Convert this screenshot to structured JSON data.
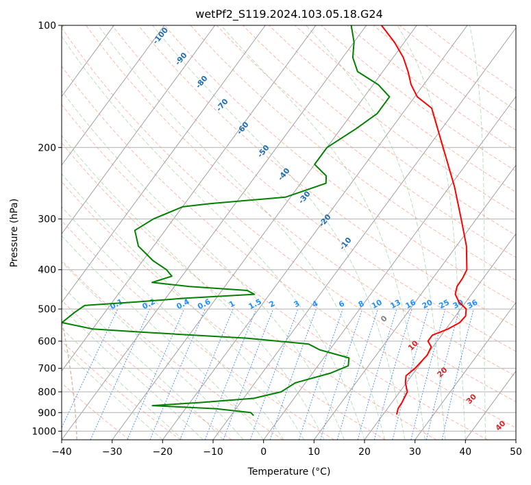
{
  "chart_data": {
    "type": "line",
    "subtype": "skew-t log-p diagram",
    "title": "wetPf2_S119.2024.103.05.18.G24",
    "xlabel": "Temperature (°C)",
    "ylabel": "Pressure (hPa)",
    "xlim": [
      -40,
      50
    ],
    "ylim": [
      1050,
      100
    ],
    "y_scale": "log",
    "grid": true,
    "x_ticks": [
      "−40",
      "−30",
      "−20",
      "−10",
      "0",
      "10",
      "20",
      "30",
      "40",
      "50"
    ],
    "y_ticks": [
      "100",
      "200",
      "300",
      "400",
      "500",
      "600",
      "700",
      "800",
      "900",
      "1000"
    ],
    "series": [
      {
        "color": "#ff0000",
        "points": [
          {
            "p": 910,
            "t": 22.7
          },
          {
            "p": 880,
            "t": 22.1
          },
          {
            "p": 850,
            "t": 22.0
          },
          {
            "p": 800,
            "t": 21.5
          },
          {
            "p": 760,
            "t": 19.8
          },
          {
            "p": 730,
            "t": 18.9
          },
          {
            "p": 700,
            "t": 19.6
          },
          {
            "p": 650,
            "t": 20.1
          },
          {
            "p": 620,
            "t": 19.7
          },
          {
            "p": 600,
            "t": 18.2
          },
          {
            "p": 580,
            "t": 18.2
          },
          {
            "p": 560,
            "t": 20.4
          },
          {
            "p": 540,
            "t": 21.8
          },
          {
            "p": 520,
            "t": 22.0
          },
          {
            "p": 500,
            "t": 21.1
          },
          {
            "p": 480,
            "t": 18.6
          },
          {
            "p": 460,
            "t": 16.8
          },
          {
            "p": 440,
            "t": 16.0
          },
          {
            "p": 420,
            "t": 15.9
          },
          {
            "p": 400,
            "t": 15.5
          },
          {
            "p": 350,
            "t": 12.0
          },
          {
            "p": 300,
            "t": 7.0
          },
          {
            "p": 250,
            "t": 1.0
          },
          {
            "p": 200,
            "t": -7.0
          },
          {
            "p": 160,
            "t": -15.0
          },
          {
            "p": 150,
            "t": -19.5
          },
          {
            "p": 140,
            "t": -22.5
          },
          {
            "p": 130,
            "t": -25.0
          },
          {
            "p": 120,
            "t": -28.0
          },
          {
            "p": 110,
            "t": -32.0
          },
          {
            "p": 100,
            "t": -37.0
          }
        ]
      },
      {
        "color": "#008000",
        "points": [
          {
            "p": 915,
            "t": -5.5
          },
          {
            "p": 900,
            "t": -6.5
          },
          {
            "p": 880,
            "t": -14.0
          },
          {
            "p": 865,
            "t": -27.0
          },
          {
            "p": 850,
            "t": -18.0
          },
          {
            "p": 830,
            "t": -8.0
          },
          {
            "p": 800,
            "t": -3.5
          },
          {
            "p": 760,
            "t": -2.0
          },
          {
            "p": 720,
            "t": 3.5
          },
          {
            "p": 690,
            "t": 6.0
          },
          {
            "p": 660,
            "t": 5.0
          },
          {
            "p": 630,
            "t": -2.0
          },
          {
            "p": 610,
            "t": -5.0
          },
          {
            "p": 590,
            "t": -18.0
          },
          {
            "p": 570,
            "t": -40.0
          },
          {
            "p": 560,
            "t": -50.0
          },
          {
            "p": 540,
            "t": -57.0
          },
          {
            "p": 510,
            "t": -56.0
          },
          {
            "p": 490,
            "t": -55.0
          },
          {
            "p": 480,
            "t": -45.0
          },
          {
            "p": 470,
            "t": -36.0
          },
          {
            "p": 460,
            "t": -23.0
          },
          {
            "p": 450,
            "t": -25.0
          },
          {
            "p": 440,
            "t": -37.0
          },
          {
            "p": 430,
            "t": -45.0
          },
          {
            "p": 415,
            "t": -42.0
          },
          {
            "p": 400,
            "t": -44.0
          },
          {
            "p": 380,
            "t": -48.0
          },
          {
            "p": 350,
            "t": -53.0
          },
          {
            "p": 320,
            "t": -56.0
          },
          {
            "p": 300,
            "t": -54.0
          },
          {
            "p": 280,
            "t": -50.0
          },
          {
            "p": 275,
            "t": -45.0
          },
          {
            "p": 265,
            "t": -31.0
          },
          {
            "p": 245,
            "t": -25.0
          },
          {
            "p": 235,
            "t": -26.0
          },
          {
            "p": 220,
            "t": -30.0
          },
          {
            "p": 200,
            "t": -30.0
          },
          {
            "p": 180,
            "t": -27.0
          },
          {
            "p": 165,
            "t": -25.0
          },
          {
            "p": 150,
            "t": -25.0
          },
          {
            "p": 140,
            "t": -29.0
          },
          {
            "p": 130,
            "t": -35.0
          },
          {
            "p": 120,
            "t": -38.0
          },
          {
            "p": 110,
            "t": -40.0
          },
          {
            "p": 100,
            "t": -43.0
          }
        ]
      }
    ],
    "dry_adiabat_labels": [
      {
        "text": "-100",
        "t": -100
      },
      {
        "text": "-90",
        "t": -90
      },
      {
        "text": "-80",
        "t": -80
      },
      {
        "text": "-70",
        "t": -70
      },
      {
        "text": "-60",
        "t": -60
      },
      {
        "text": "-50",
        "t": -50
      },
      {
        "text": "-40",
        "t": -40
      },
      {
        "text": "-30",
        "t": -30
      },
      {
        "text": "-20",
        "t": -20
      },
      {
        "text": "-10",
        "t": -10
      }
    ],
    "mixing_ratio_labels": [
      "0.1",
      "0.2",
      "0.4",
      "0.6",
      "1",
      "1.5",
      "2",
      "3",
      "4",
      "6",
      "8",
      "10",
      "13",
      "16",
      "20",
      "25",
      "30",
      "36"
    ],
    "moist_adiabat_labels": [
      {
        "text": "0",
        "color": "#808080"
      },
      {
        "text": "10",
        "color": "#d62728"
      },
      {
        "text": "20",
        "color": "#d62728"
      },
      {
        "text": "30",
        "color": "#d62728"
      },
      {
        "text": "40",
        "color": "#d62728"
      }
    ],
    "colors": {
      "isotherm": "#a0a0a0",
      "dry_adiabat": "#ff6040",
      "moist_adiabat": "#40a040",
      "mixing_ratio": "#1f77ff",
      "dry_adiabat_label": "#1f6fb0",
      "mixing_ratio_label": "#1f8fff",
      "gridline": "#b0b0b0",
      "poly_curve": "#c8a080"
    }
  }
}
